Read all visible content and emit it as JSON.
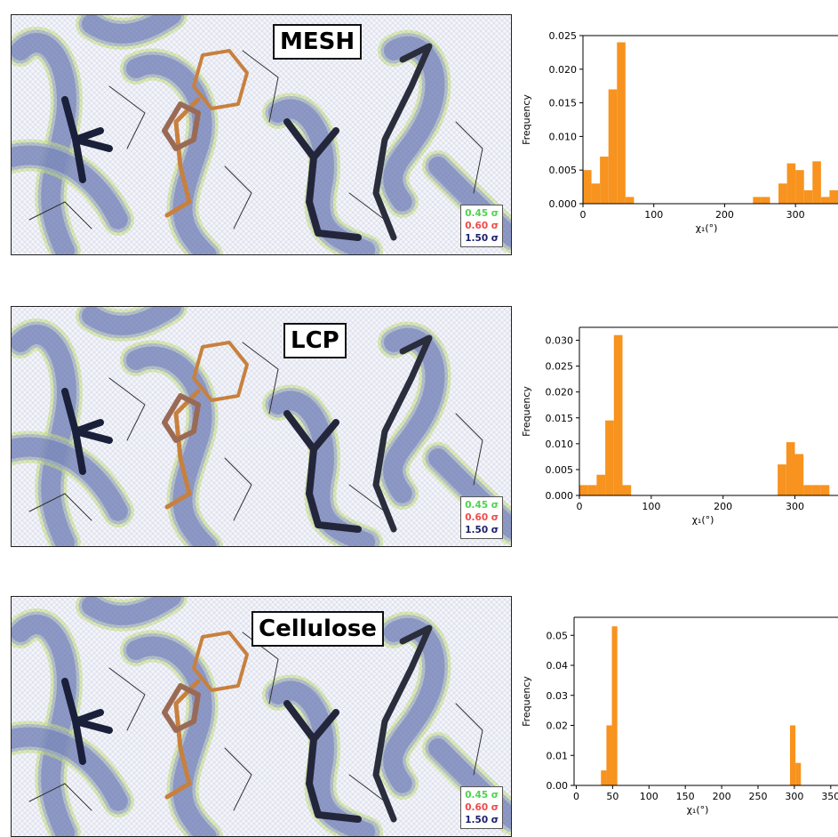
{
  "panels": [
    {
      "label": "MESH",
      "legend": [
        "0.45 σ",
        "0.60 σ",
        "1.50 σ"
      ]
    },
    {
      "label": "LCP",
      "legend": [
        "0.45 σ",
        "0.60 σ",
        "1.50 σ"
      ]
    },
    {
      "label": "Cellulose",
      "legend": [
        "0.45 σ",
        "0.60 σ",
        "1.50 σ"
      ]
    }
  ],
  "colors": {
    "bar": "#f7931e",
    "green_contour": "#4fd24f",
    "red_contour": "#f04a4a",
    "blue_contour": "#1b1f6b",
    "residue": "#c8803e"
  },
  "chart_data": [
    {
      "type": "bar",
      "xlabel": "χ₁(°)",
      "ylabel": "Frequency",
      "xlim": [
        0,
        360
      ],
      "ylim": [
        0,
        0.025
      ],
      "xticks": [
        "0",
        "100",
        "200",
        "300"
      ],
      "yticks": [
        "0.000",
        "0.005",
        "0.010",
        "0.015",
        "0.020",
        "0.025"
      ],
      "bin_width": 12,
      "bins": [
        {
          "x": 0,
          "value": 0.005
        },
        {
          "x": 12,
          "value": 0.003
        },
        {
          "x": 24,
          "value": 0.007
        },
        {
          "x": 36,
          "value": 0.017
        },
        {
          "x": 48,
          "value": 0.024
        },
        {
          "x": 60,
          "value": 0.001
        },
        {
          "x": 240,
          "value": 0.001
        },
        {
          "x": 252,
          "value": 0.001
        },
        {
          "x": 276,
          "value": 0.003
        },
        {
          "x": 288,
          "value": 0.006
        },
        {
          "x": 300,
          "value": 0.005
        },
        {
          "x": 312,
          "value": 0.002
        },
        {
          "x": 324,
          "value": 0.0063
        },
        {
          "x": 336,
          "value": 0.001
        },
        {
          "x": 348,
          "value": 0.002
        }
      ]
    },
    {
      "type": "bar",
      "xlabel": "χ₁(°)",
      "ylabel": "Frequency",
      "xlim": [
        0,
        360
      ],
      "ylim": [
        0,
        0.0325
      ],
      "xticks": [
        "0",
        "100",
        "200",
        "300"
      ],
      "yticks": [
        "0.000",
        "0.005",
        "0.010",
        "0.015",
        "0.020",
        "0.025",
        "0.030"
      ],
      "bin_width": 12,
      "bins": [
        {
          "x": 0,
          "value": 0.002
        },
        {
          "x": 12,
          "value": 0.002
        },
        {
          "x": 24,
          "value": 0.004
        },
        {
          "x": 36,
          "value": 0.0145
        },
        {
          "x": 48,
          "value": 0.031
        },
        {
          "x": 60,
          "value": 0.002
        },
        {
          "x": 276,
          "value": 0.006
        },
        {
          "x": 288,
          "value": 0.0103
        },
        {
          "x": 300,
          "value": 0.008
        },
        {
          "x": 312,
          "value": 0.002
        },
        {
          "x": 324,
          "value": 0.002
        },
        {
          "x": 336,
          "value": 0.002
        }
      ]
    },
    {
      "type": "bar",
      "xlabel": "χ₁(°)",
      "ylabel": "Frequency",
      "xlim": [
        -3,
        360
      ],
      "ylim": [
        0,
        0.056
      ],
      "xticks": [
        "0",
        "50",
        "100",
        "150",
        "200",
        "250",
        "300",
        "350"
      ],
      "yticks": [
        "0.00",
        "0.01",
        "0.02",
        "0.03",
        "0.04",
        "0.05"
      ],
      "bin_width": 7.5,
      "bins": [
        {
          "x": 34,
          "value": 0.005
        },
        {
          "x": 41.5,
          "value": 0.02
        },
        {
          "x": 49,
          "value": 0.053
        },
        {
          "x": 294,
          "value": 0.02
        },
        {
          "x": 301.5,
          "value": 0.0075
        }
      ]
    }
  ]
}
